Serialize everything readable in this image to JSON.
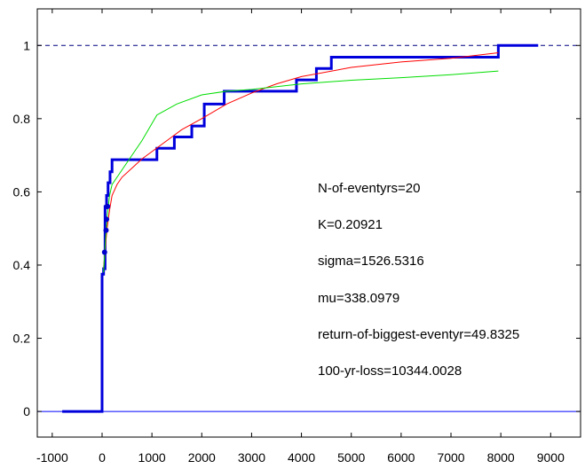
{
  "chart_data": {
    "type": "line",
    "title": "",
    "xlabel": "",
    "ylabel": "",
    "xlim": [
      -1300,
      9600
    ],
    "ylim": [
      -0.07,
      1.1
    ],
    "x_ticks": [
      -1000,
      0,
      1000,
      2000,
      3000,
      4000,
      5000,
      6000,
      7000,
      8000,
      9000
    ],
    "x_tick_labels": [
      "-1000",
      "0",
      "1000",
      "2000",
      "3000",
      "4000",
      "5000",
      "6000",
      "7000",
      "8000",
      "9000"
    ],
    "y_ticks": [
      0,
      0.2,
      0.4,
      0.6,
      0.8,
      1
    ],
    "y_tick_labels": [
      "0",
      "0.2",
      "0.4",
      "0.6",
      "0.8",
      "1"
    ],
    "grid": false,
    "reference_lines": [
      {
        "y": 1,
        "style": "dashed",
        "color": "#000080"
      },
      {
        "y": 0,
        "style": "solid",
        "color": "#0000ff"
      }
    ],
    "series": [
      {
        "kind": "step",
        "color": "#0000dd",
        "x": [
          -800,
          0,
          0,
          30,
          60,
          90,
          120,
          160,
          200,
          1100,
          1450,
          1800,
          2050,
          2450,
          3050,
          3900,
          4300,
          4600,
          7950,
          8750
        ],
        "y": [
          0,
          0,
          0.375,
          0.39,
          0.56,
          0.59,
          0.625,
          0.655,
          0.688,
          0.719,
          0.75,
          0.78,
          0.84,
          0.875,
          0.875,
          0.906,
          0.937,
          0.968,
          1.0,
          1.0
        ]
      },
      {
        "kind": "curve",
        "color": "#ff0000",
        "x": [
          30,
          60,
          100,
          150,
          200,
          300,
          400,
          600,
          800,
          1000,
          1300,
          1600,
          2000,
          2500,
          3000,
          3500,
          4000,
          5000,
          6000,
          7000,
          7950
        ],
        "y": [
          0.39,
          0.44,
          0.5,
          0.55,
          0.59,
          0.62,
          0.64,
          0.665,
          0.69,
          0.71,
          0.74,
          0.77,
          0.8,
          0.84,
          0.87,
          0.895,
          0.915,
          0.94,
          0.955,
          0.965,
          0.98
        ]
      },
      {
        "kind": "curve",
        "color": "#00dd00",
        "x": [
          30,
          60,
          100,
          150,
          200,
          300,
          500,
          800,
          1100,
          1500,
          2000,
          2500,
          3000,
          4000,
          5000,
          6000,
          7000,
          7950
        ],
        "y": [
          0.38,
          0.45,
          0.53,
          0.59,
          0.62,
          0.64,
          0.68,
          0.74,
          0.81,
          0.84,
          0.865,
          0.875,
          0.88,
          0.895,
          0.905,
          0.912,
          0.92,
          0.93
        ]
      }
    ],
    "markers": {
      "color": "#0000cc",
      "x": [
        50,
        80,
        90,
        100,
        110
      ],
      "y": [
        0.435,
        0.495,
        0.525,
        0.56,
        0.56
      ]
    },
    "annotations": [
      "N-of-eventyrs=20",
      "K=0.20921",
      "sigma=1526.5316",
      "mu=338.0979",
      "return-of-biggest-eventyr=49.8325",
      "100-yr-loss=10344.0028"
    ]
  }
}
